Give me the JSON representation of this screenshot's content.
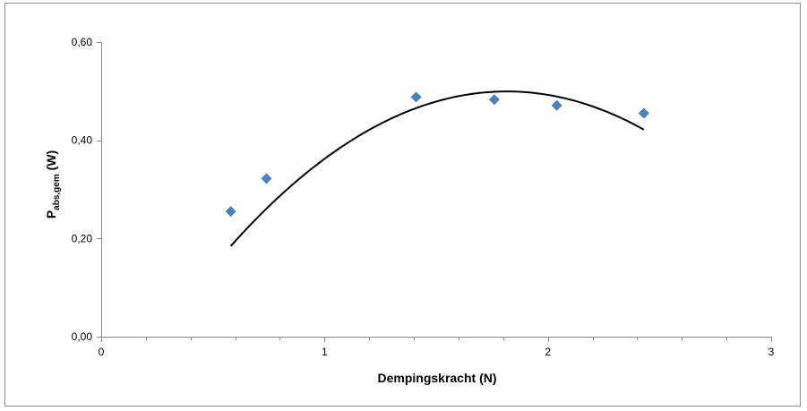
{
  "chart_data": {
    "type": "scatter",
    "title": "",
    "xlabel": "Dempingskracht (N)",
    "ylabel": {
      "main": "P",
      "subscript": "abs,gem",
      "unit": " (W)"
    },
    "xlim": [
      0,
      3
    ],
    "ylim": [
      0,
      0.6
    ],
    "x_ticks": [
      0,
      1,
      2,
      3
    ],
    "x_tick_labels": [
      "0",
      "1",
      "2",
      "3"
    ],
    "y_ticks": [
      0,
      0.2,
      0.4,
      0.6
    ],
    "y_tick_labels": [
      "0,00",
      "0,20",
      "0,40",
      "0,60"
    ],
    "grid": false,
    "legend": "none",
    "series": [
      {
        "marker": "diamond",
        "color": "#4F81BD",
        "x": [
          0.58,
          0.74,
          1.41,
          1.76,
          2.04,
          2.43
        ],
        "y": [
          0.255,
          0.322,
          0.488,
          0.483,
          0.471,
          0.455
        ]
      }
    ],
    "trendline": {
      "kind": "polynomial-2",
      "color": "#000000",
      "x_range": [
        0.58,
        2.43
      ],
      "coefficients": [
        -0.2062,
        0.7489,
        -0.1805
      ]
    }
  }
}
